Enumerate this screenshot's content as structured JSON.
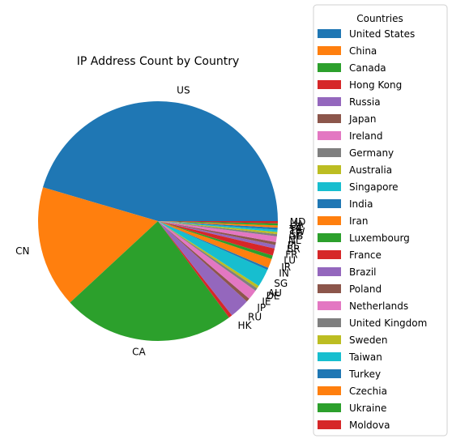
{
  "chart_data": {
    "type": "pie",
    "title": "IP Address Count by Country",
    "legend_title": "Countries",
    "legend_position": "right",
    "slices": [
      {
        "code": "US",
        "name": "United States",
        "value": 47.0,
        "color": "#1f77b4"
      },
      {
        "code": "CN",
        "name": "China",
        "value": 17.0,
        "color": "#ff7f0e"
      },
      {
        "code": "CA",
        "name": "Canada",
        "value": 24.0,
        "color": "#2ca02c"
      },
      {
        "code": "HK",
        "name": "Hong Kong",
        "value": 0.5,
        "color": "#d62728"
      },
      {
        "code": "RU",
        "name": "Russia",
        "value": 2.8,
        "color": "#9467bd"
      },
      {
        "code": "JP",
        "name": "Japan",
        "value": 0.5,
        "color": "#8c564b"
      },
      {
        "code": "IE",
        "name": "Ireland",
        "value": 1.4,
        "color": "#e377c2"
      },
      {
        "code": "DE",
        "name": "Germany",
        "value": 0.4,
        "color": "#7f7f7f"
      },
      {
        "code": "AU",
        "name": "Australia",
        "value": 0.4,
        "color": "#bcbd22"
      },
      {
        "code": "SG",
        "name": "Singapore",
        "value": 2.5,
        "color": "#17becf"
      },
      {
        "code": "IN",
        "name": "India",
        "value": 0.3,
        "color": "#1f77b4"
      },
      {
        "code": "IR",
        "name": "Iran",
        "value": 1.3,
        "color": "#ff7f0e"
      },
      {
        "code": "LU",
        "name": "Luxembourg",
        "value": 0.5,
        "color": "#2ca02c"
      },
      {
        "code": "FR",
        "name": "France",
        "value": 1.0,
        "color": "#d62728"
      },
      {
        "code": "BR",
        "name": "Brazil",
        "value": 0.5,
        "color": "#9467bd"
      },
      {
        "code": "PL",
        "name": "Poland",
        "value": 0.4,
        "color": "#8c564b"
      },
      {
        "code": "NL",
        "name": "Netherlands",
        "value": 0.8,
        "color": "#e377c2"
      },
      {
        "code": "GB",
        "name": "United Kingdom",
        "value": 0.3,
        "color": "#7f7f7f"
      },
      {
        "code": "SE",
        "name": "Sweden",
        "value": 0.3,
        "color": "#bcbd22"
      },
      {
        "code": "TW",
        "name": "Taiwan",
        "value": 0.3,
        "color": "#17becf"
      },
      {
        "code": "TR",
        "name": "Turkey",
        "value": 0.3,
        "color": "#1f77b4"
      },
      {
        "code": "CZ",
        "name": "Czechia",
        "value": 0.3,
        "color": "#ff7f0e"
      },
      {
        "code": "UA",
        "name": "Ukraine",
        "value": 0.3,
        "color": "#2ca02c"
      },
      {
        "code": "MD",
        "name": "Moldova",
        "value": 0.3,
        "color": "#d62728"
      }
    ]
  }
}
